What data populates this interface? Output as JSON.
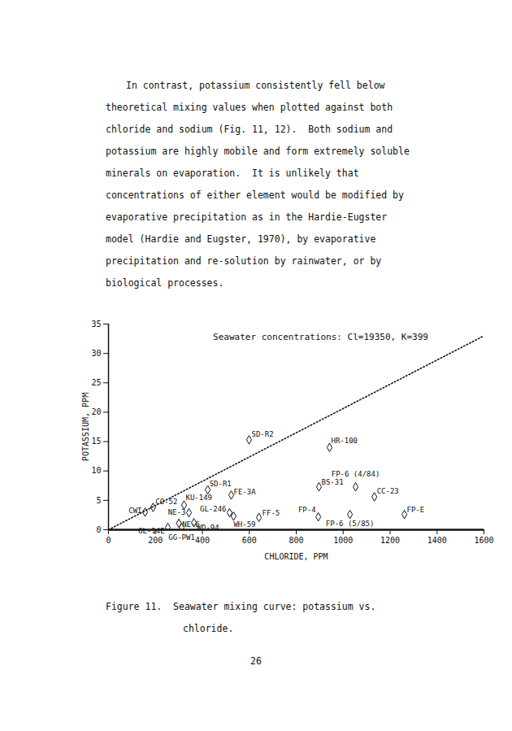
{
  "page": {
    "paragraph_lines": [
      "In contrast, potassium consistently fell below",
      "theoretical mixing values when plotted against both",
      "chloride and sodium (Fig. 11, 12).  Both sodium and",
      "potassium are highly mobile and form extremely soluble",
      "minerals on evaporation.  It is unlikely that",
      "concentrations of either element would be modified by",
      "evaporative precipitation as in the Hardie-Eugster",
      "model (Hardie and Eugster, 1970), by evaporative",
      "precipitation and re-solution by rainwater, or by",
      "biological processes."
    ],
    "caption_lines": [
      "Figure 11.  Seawater mixing curve: potassium vs.",
      "chloride."
    ],
    "page_number": "26"
  },
  "chart_data": {
    "type": "scatter",
    "annotation": "Seawater concentrations: Cl=19350, K=399",
    "x_label": "CHLORIDE, PPM",
    "y_label": "POTASSIUM, PPM",
    "xlim": [
      0,
      1600
    ],
    "xticks": [
      0,
      200,
      400,
      600,
      800,
      1000,
      1200,
      1400,
      1600
    ],
    "ylim": [
      0,
      35
    ],
    "yticks": [
      0,
      5,
      10,
      15,
      20,
      25,
      30,
      35
    ],
    "grid": false,
    "series": [
      {
        "type": "scatter",
        "marker": "diamond",
        "color": "#111111",
        "labels": [
          "CWI",
          "CO-52",
          "GL-14E",
          "GG-PW1",
          "NE-6",
          "NE-3",
          "KU-149",
          "WD-94",
          "GL-246",
          "SD-R1",
          "FE-3A",
          "WH-59",
          "SD-R2",
          "FF-5",
          "BS-31",
          "FP-4",
          "HR-100",
          "FP-6 (4/84)",
          "CC-23",
          "FP-6 (5/85)",
          "FP-E"
        ],
        "x": [
          156,
          190,
          253,
          312,
          300,
          343,
          322,
          364,
          516,
          423,
          523,
          533,
          599,
          641,
          897,
          894,
          942,
          1053,
          1133,
          1029,
          1261
        ],
        "values": [
          3.0,
          3.8,
          0.4,
          0.4,
          1.1,
          2.9,
          4.2,
          1.2,
          2.9,
          6.8,
          5.9,
          2.3,
          15.3,
          2.1,
          7.3,
          2.2,
          14.0,
          7.3,
          5.6,
          2.6,
          2.6
        ]
      },
      {
        "type": "line",
        "line_style": "dotted",
        "color": "#111111",
        "x": [
          0,
          1600
        ],
        "values": [
          0,
          33.0
        ]
      }
    ]
  }
}
